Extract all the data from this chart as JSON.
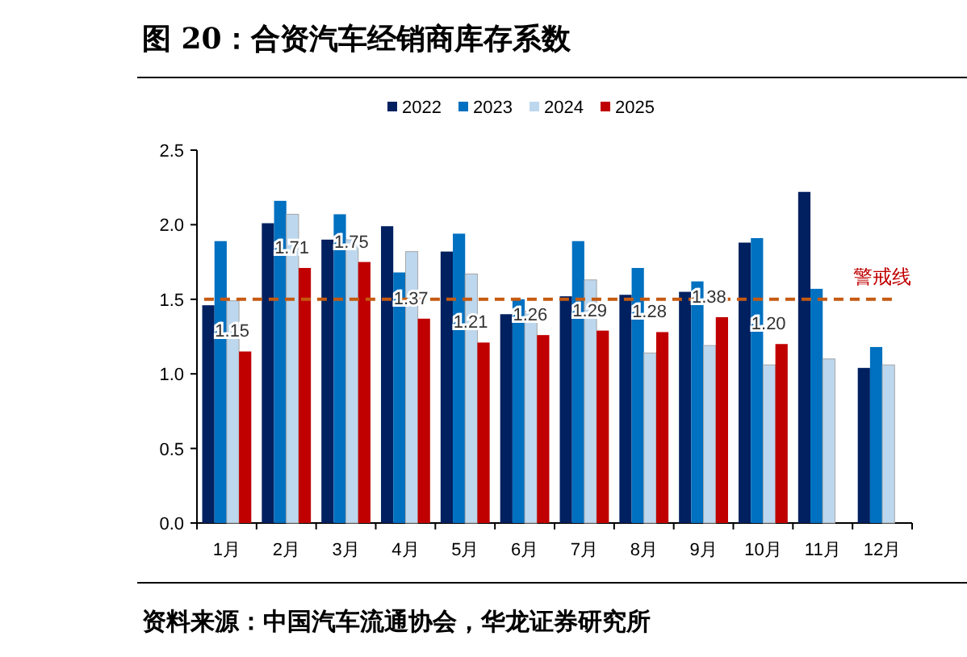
{
  "chart_data": {
    "type": "bar",
    "title": "图 20：合资汽车经销商库存系数",
    "categories": [
      "1月",
      "2月",
      "3月",
      "4月",
      "5月",
      "6月",
      "7月",
      "8月",
      "9月",
      "10月",
      "11月",
      "12月"
    ],
    "series": [
      {
        "name": "2022",
        "color": "#002060",
        "values": [
          1.46,
          2.01,
          1.9,
          1.99,
          1.82,
          1.4,
          1.52,
          1.53,
          1.55,
          1.88,
          2.22,
          1.04
        ]
      },
      {
        "name": "2023",
        "color": "#0070c0",
        "values": [
          1.89,
          2.16,
          2.07,
          1.68,
          1.94,
          1.5,
          1.89,
          1.71,
          1.62,
          1.91,
          1.57,
          1.18
        ]
      },
      {
        "name": "2024",
        "color": "#bdd7ee",
        "values": [
          1.49,
          2.07,
          1.9,
          1.82,
          1.67,
          1.42,
          1.63,
          1.14,
          1.19,
          1.06,
          1.1,
          1.06
        ]
      },
      {
        "name": "2025",
        "color": "#c00000",
        "values": [
          1.15,
          1.71,
          1.75,
          1.37,
          1.21,
          1.26,
          1.29,
          1.28,
          1.38,
          1.2,
          null,
          null
        ],
        "value_labels": [
          "1.15",
          "1.71",
          "1.75",
          "1.37",
          "1.21",
          "1.26",
          "1.29",
          "1.28",
          "1.38",
          "1.20",
          null,
          null
        ]
      }
    ],
    "ylim": [
      0,
      2.5
    ],
    "yticks": [
      {
        "value": 0,
        "label": "0.0"
      },
      {
        "value": 0.5,
        "label": "0.5"
      },
      {
        "value": 1,
        "label": "1.0"
      },
      {
        "value": 1.5,
        "label": "1.5"
      },
      {
        "value": 2,
        "label": "2.0"
      },
      {
        "value": 2.5,
        "label": "2.5"
      }
    ],
    "ref_lines": [
      {
        "axis": "y",
        "value": 1.5,
        "label": "警戒线",
        "color": "#c55a11",
        "line_style": "dashed"
      }
    ],
    "legend": "top",
    "annotations": [
      "资料来源：中国汽车流通协会，华龙证券研究所"
    ]
  }
}
